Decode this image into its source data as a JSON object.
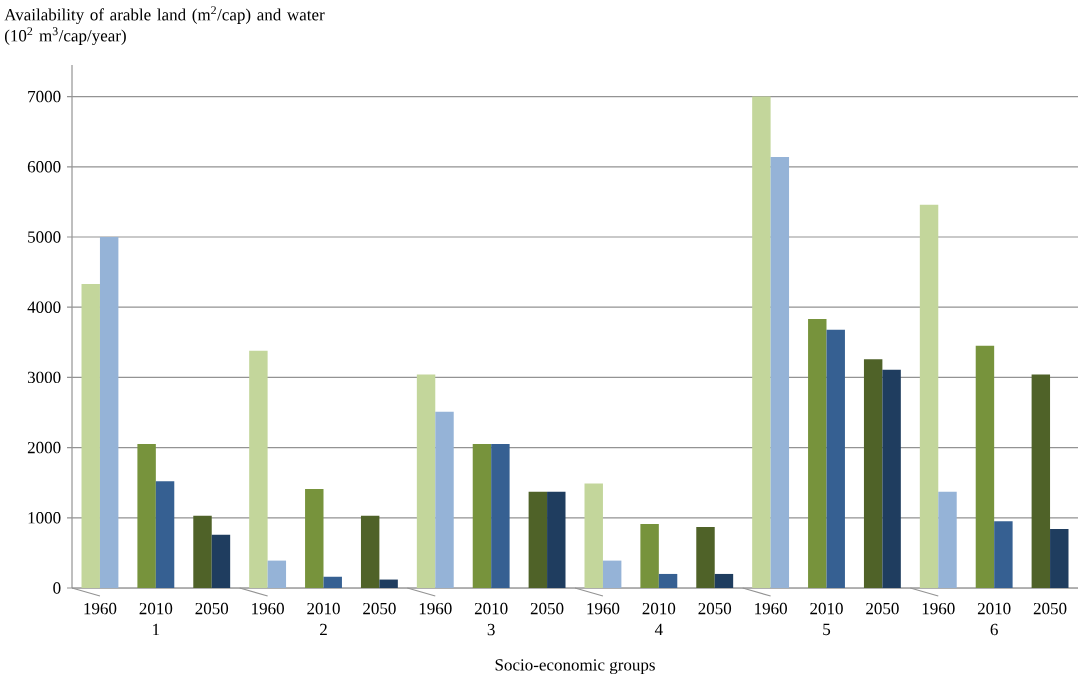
{
  "chart_data": {
    "type": "bar",
    "ylabel": "Availability of arable land (m$^{2}$/cap) and water (10$^{2}$ m$^{3}$/cap/year)",
    "xlabel": "Socio-economic groups",
    "categories": [
      "1960",
      "2010",
      "2050",
      "1960",
      "2010",
      "2050",
      "1960",
      "2010",
      "2050",
      "1960",
      "2010",
      "2050",
      "1960",
      "2010",
      "2050",
      "1960",
      "2010",
      "2050"
    ],
    "annotations": [
      "1",
      "2",
      "3",
      "4",
      "5",
      "6"
    ],
    "series": [
      {
        "colors": [
          "#c3d69b",
          "#77933c",
          "#4f6228",
          "#c3d69b",
          "#77933c",
          "#4f6228",
          "#c3d69b",
          "#77933c",
          "#4f6228",
          "#c3d69b",
          "#77933c",
          "#4f6228",
          "#c3d69b",
          "#77933c",
          "#4f6228",
          "#c3d69b",
          "#77933c",
          "#4f6228"
        ],
        "values": [
          4330,
          2050,
          1030,
          3380,
          1410,
          1030,
          3040,
          2050,
          1370,
          1490,
          910,
          870,
          7000,
          3830,
          3260,
          5460,
          3450,
          3040
        ]
      },
      {
        "colors": [
          "#95b3d7",
          "#366092",
          "#1f3d5f",
          "#95b3d7",
          "#366092",
          "#1f3d5f",
          "#95b3d7",
          "#366092",
          "#1f3d5f",
          "#95b3d7",
          "#366092",
          "#1f3d5f",
          "#95b3d7",
          "#366092",
          "#1f3d5f",
          "#95b3d7",
          "#366092",
          "#1f3d5f"
        ],
        "values": [
          5000,
          1520,
          760,
          390,
          160,
          120,
          2510,
          2050,
          1370,
          390,
          200,
          200,
          6140,
          3680,
          3110,
          1370,
          950,
          840
        ]
      }
    ],
    "ylim": [
      0,
      7450
    ],
    "yticks": [
      0,
      1000,
      2000,
      3000,
      4000,
      5000,
      6000,
      7000
    ],
    "grid": "y"
  }
}
